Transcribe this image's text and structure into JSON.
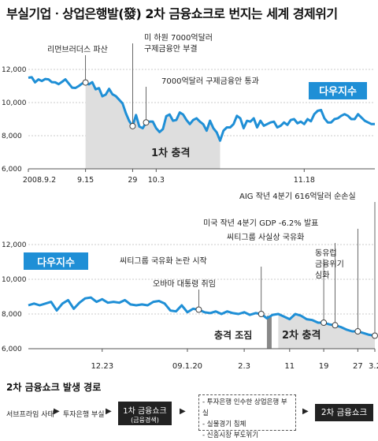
{
  "title": "부실기업ㆍ상업은행발(發) 2차 금융쇼크로 번지는 세계 경제위기",
  "chart_data": [
    {
      "type": "line",
      "series_label": "다우지수",
      "ylim": [
        6000,
        12000
      ],
      "yticks": [
        "12,000",
        "10,000",
        "8,000",
        "6,000"
      ],
      "xticks": [
        "2008.9.2",
        "9.15",
        "29",
        "10.3",
        "11.18"
      ],
      "shade_label": "1차 충격",
      "values": [
        11500,
        11530,
        11220,
        11400,
        11300,
        11420,
        11400,
        11230,
        11220,
        11110,
        11250,
        11400,
        11150,
        10900,
        10880,
        11000,
        11150,
        11210,
        11100,
        11230,
        10800,
        10870,
        10380,
        10480,
        10830,
        10500,
        10390,
        10170,
        9950,
        9350,
        8880,
        8580,
        9250,
        8550,
        8450,
        8800,
        8850,
        8850,
        8450,
        8220,
        8400,
        9180,
        9280,
        8900,
        8950,
        9400,
        9280,
        8950,
        8700,
        8950,
        9050,
        8850,
        8690,
        8300,
        8900,
        8450,
        8200,
        7700,
        8300,
        8500,
        8500,
        8700,
        9200,
        9050,
        8450,
        8900,
        8850,
        9050,
        8500,
        8900,
        8600,
        8700,
        8800,
        8850,
        8500,
        8600,
        8800,
        8650,
        8950,
        9000,
        8750,
        8850,
        8700,
        9000,
        8870,
        9300,
        9500,
        9550,
        9050,
        8800,
        8800,
        9000,
        9050,
        9200,
        9300,
        9200,
        9000,
        9000,
        9300,
        9100,
        8900,
        8800,
        8700,
        8700
      ]
    },
    {
      "type": "line",
      "series_label": "다우지수",
      "ylim": [
        6000,
        12000
      ],
      "yticks": [
        "12,000",
        "10,000",
        "8,000",
        "6,000"
      ],
      "xticks": [
        "12.23",
        "09.1.20",
        "2.3",
        "11",
        "19",
        "27",
        "3.2"
      ],
      "shade_labels": [
        "충격 조짐",
        "2차 충격"
      ],
      "values": [
        8500,
        8600,
        8500,
        8600,
        8700,
        8200,
        8600,
        8800,
        8300,
        8650,
        8900,
        8950,
        8700,
        8850,
        8650,
        8700,
        8650,
        8800,
        8550,
        8500,
        8550,
        8500,
        8700,
        8750,
        8600,
        8200,
        8150,
        8500,
        8100,
        8300,
        8250,
        8100,
        8050,
        8150,
        8000,
        8150,
        8050,
        8000,
        8100,
        7950,
        8050,
        8000,
        7750,
        7950,
        8000,
        7850,
        7700,
        8000,
        7900,
        7700,
        7650,
        7500,
        7500,
        7400,
        7350,
        7250,
        7100,
        7000,
        7000,
        6900,
        6800,
        6750
      ]
    }
  ],
  "annotations": {
    "a1": "리먼브러더스 파산",
    "a2": "미 하원 7000억달러",
    "a2b": "구제금융안 부결",
    "a3": "7000억달러 구제금융안 통과",
    "b1": "AIG 작년 4분기 616억달러 순손실",
    "b2": "미국 작년 4분기 GDP -6.2% 발표",
    "b3": "씨티그룹 사실상 국유화",
    "b4": "씨티그룹 국유화 논란 시작",
    "b5": "오바마 대통령 취임",
    "b6a": "동유럽",
    "b6b": "금융위기",
    "b6c": "심화"
  },
  "flow": {
    "title": "2차 금융쇼크 발생 경로",
    "step1": "서브프라임 사태",
    "step2": "투자은행 부실",
    "box1": "1차 금융쇼크",
    "box1_sub": "(금융경색)",
    "box2_items": [
      "- 투자은행 인수한 상업은행 부실",
      "- 실물경기 침체",
      "- 신흥시장 부도위기"
    ],
    "box3": "2차 금융쇼크"
  },
  "colors": {
    "line": "#1f8fd6",
    "shade": "#dedede",
    "label_bg": "#1f8fd6"
  }
}
